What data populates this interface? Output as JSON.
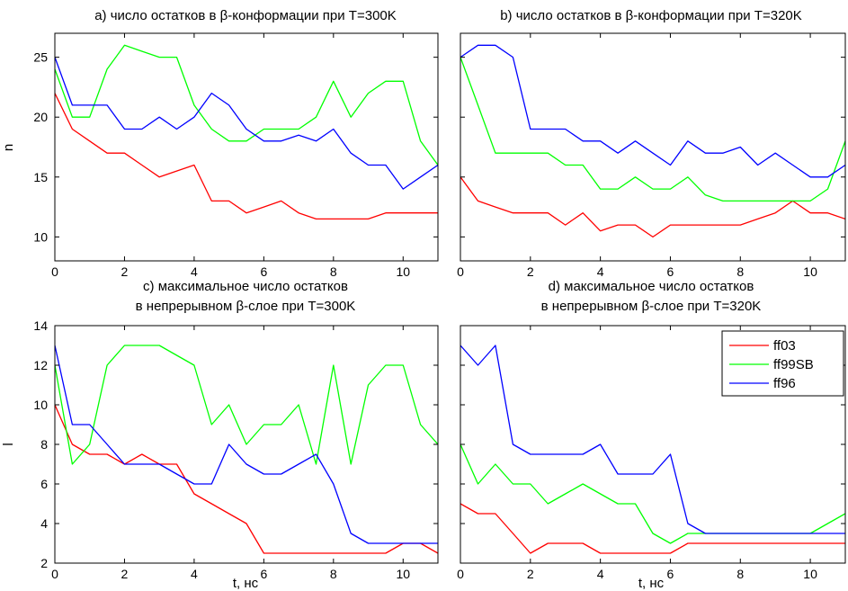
{
  "colors": {
    "ff03": "#ff0000",
    "ff99SB": "#00ff00",
    "ff96": "#0000ff",
    "axes": "#000000"
  },
  "legend": {
    "placement": "top-right of panel d",
    "entries": [
      "ff03",
      "ff99SB",
      "ff96"
    ]
  },
  "panels_titles": {
    "a": [
      "a) число остатков в β-конформации при T=300K"
    ],
    "b": [
      "b) число остатков в β-конформации при T=320K"
    ],
    "c": [
      "c) максимальное число остатков",
      "в непрерывном β-слое при T=300K"
    ],
    "d": [
      "d) максимальное число остатков",
      "в непрерывном β-слое при T=320K"
    ]
  },
  "chart_data": [
    {
      "type": "line",
      "title": "a) число остатков в β-конформации при T=300K",
      "xlabel": "",
      "ylabel": "n",
      "xlim": [
        0,
        11
      ],
      "ylim": [
        8,
        27
      ],
      "xticks": [
        0,
        2,
        4,
        6,
        8,
        10
      ],
      "yticks": [
        10,
        15,
        20,
        25
      ],
      "x": [
        0,
        0.5,
        1,
        1.5,
        2,
        2.5,
        3,
        3.5,
        4,
        4.5,
        5,
        5.5,
        6,
        6.5,
        7,
        7.5,
        8,
        8.5,
        9,
        9.5,
        10,
        10.5,
        11
      ],
      "series": [
        {
          "name": "ff03",
          "values": [
            22,
            19,
            18,
            17,
            17,
            16,
            15,
            15.5,
            16,
            13,
            13,
            12,
            12.5,
            13,
            12,
            11.5,
            11.5,
            11.5,
            11.5,
            12,
            12,
            12,
            12
          ]
        },
        {
          "name": "ff99SB",
          "values": [
            24,
            20,
            20,
            24,
            26,
            25.5,
            25,
            25,
            21,
            19,
            18,
            18,
            19,
            19,
            19,
            20,
            23,
            20,
            22,
            23,
            23,
            18,
            16
          ]
        },
        {
          "name": "ff96",
          "values": [
            25,
            21,
            21,
            21,
            19,
            19,
            20,
            19,
            20,
            22,
            21,
            19,
            18,
            18,
            18.5,
            18,
            19,
            17,
            16,
            16,
            14,
            15,
            16
          ]
        }
      ]
    },
    {
      "type": "line",
      "title": "b) число остатков в β-конформации при T=320K",
      "xlabel": "",
      "ylabel": "",
      "xlim": [
        0,
        11
      ],
      "ylim": [
        8,
        27
      ],
      "xticks": [
        0,
        2,
        4,
        6,
        8,
        10
      ],
      "yticks": [
        10,
        15,
        20,
        25
      ],
      "x": [
        0,
        0.5,
        1,
        1.5,
        2,
        2.5,
        3,
        3.5,
        4,
        4.5,
        5,
        5.5,
        6,
        6.5,
        7,
        7.5,
        8,
        8.5,
        9,
        9.5,
        10,
        10.5,
        11
      ],
      "series": [
        {
          "name": "ff03",
          "values": [
            15,
            13,
            12.5,
            12,
            12,
            12,
            11,
            12,
            10.5,
            11,
            11,
            10,
            11,
            11,
            11,
            11,
            11,
            11.5,
            12,
            13,
            12,
            12,
            11.5
          ]
        },
        {
          "name": "ff99SB",
          "values": [
            25,
            21,
            17,
            17,
            17,
            17,
            16,
            16,
            14,
            14,
            15,
            14,
            14,
            15,
            13.5,
            13,
            13,
            13,
            13,
            13,
            13,
            14,
            18
          ]
        },
        {
          "name": "ff96",
          "values": [
            25,
            26,
            26,
            25,
            19,
            19,
            19,
            18,
            18,
            17,
            18,
            17,
            16,
            18,
            17,
            17,
            17.5,
            16,
            17,
            16,
            15,
            15,
            16
          ]
        }
      ]
    },
    {
      "type": "line",
      "title": "c) максимальное число остатков в непрерывном β-слое при T=300K",
      "xlabel": "t, нс",
      "ylabel": "l",
      "xlim": [
        0,
        11
      ],
      "ylim": [
        2,
        14
      ],
      "xticks": [
        0,
        2,
        4,
        6,
        8,
        10
      ],
      "yticks": [
        2,
        4,
        6,
        8,
        10,
        12,
        14
      ],
      "x": [
        0,
        0.5,
        1,
        1.5,
        2,
        2.5,
        3,
        3.5,
        4,
        4.5,
        5,
        5.5,
        6,
        6.5,
        7,
        7.5,
        8,
        8.5,
        9,
        9.5,
        10,
        10.5,
        11
      ],
      "series": [
        {
          "name": "ff03",
          "values": [
            10,
            8,
            7.5,
            7.5,
            7,
            7.5,
            7,
            7,
            5.5,
            5,
            4.5,
            4,
            2.5,
            2.5,
            2.5,
            2.5,
            2.5,
            2.5,
            2.5,
            2.5,
            3,
            3,
            2.5
          ]
        },
        {
          "name": "ff99SB",
          "values": [
            12,
            7,
            8,
            12,
            13,
            13,
            13,
            12.5,
            12,
            9,
            10,
            8,
            9,
            9,
            10,
            7,
            12,
            7,
            11,
            12,
            12,
            9,
            8
          ]
        },
        {
          "name": "ff96",
          "values": [
            13,
            9,
            9,
            8,
            7,
            7,
            7,
            6.5,
            6,
            6,
            8,
            7,
            6.5,
            6.5,
            7,
            7.5,
            6,
            3.5,
            3,
            3,
            3,
            3,
            3
          ]
        }
      ]
    },
    {
      "type": "line",
      "title": "d) максимальное число остатков в непрерывном β-слое при T=320K",
      "xlabel": "t, нс",
      "ylabel": "",
      "xlim": [
        0,
        11
      ],
      "ylim": [
        2,
        14
      ],
      "xticks": [
        0,
        2,
        4,
        6,
        8,
        10
      ],
      "yticks": [
        2,
        4,
        6,
        8,
        10,
        12,
        14
      ],
      "x": [
        0,
        0.5,
        1,
        1.5,
        2,
        2.5,
        3,
        3.5,
        4,
        4.5,
        5,
        5.5,
        6,
        6.5,
        7,
        7.5,
        8,
        8.5,
        9,
        9.5,
        10,
        10.5,
        11
      ],
      "series": [
        {
          "name": "ff03",
          "values": [
            5,
            4.5,
            4.5,
            3.5,
            2.5,
            3,
            3,
            3,
            2.5,
            2.5,
            2.5,
            2.5,
            2.5,
            3,
            3,
            3,
            3,
            3,
            3,
            3,
            3,
            3,
            3
          ]
        },
        {
          "name": "ff99SB",
          "values": [
            8,
            6,
            7,
            6,
            6,
            5,
            5.5,
            6,
            5.5,
            5,
            5,
            3.5,
            3,
            3.5,
            3.5,
            3.5,
            3.5,
            3.5,
            3.5,
            3.5,
            3.5,
            4,
            4.5
          ]
        },
        {
          "name": "ff96",
          "values": [
            13,
            12,
            13,
            8,
            7.5,
            7.5,
            7.5,
            7.5,
            8,
            6.5,
            6.5,
            6.5,
            7.5,
            4,
            3.5,
            3.5,
            3.5,
            3.5,
            3.5,
            3.5,
            3.5,
            3.5,
            3.5
          ]
        }
      ]
    }
  ]
}
